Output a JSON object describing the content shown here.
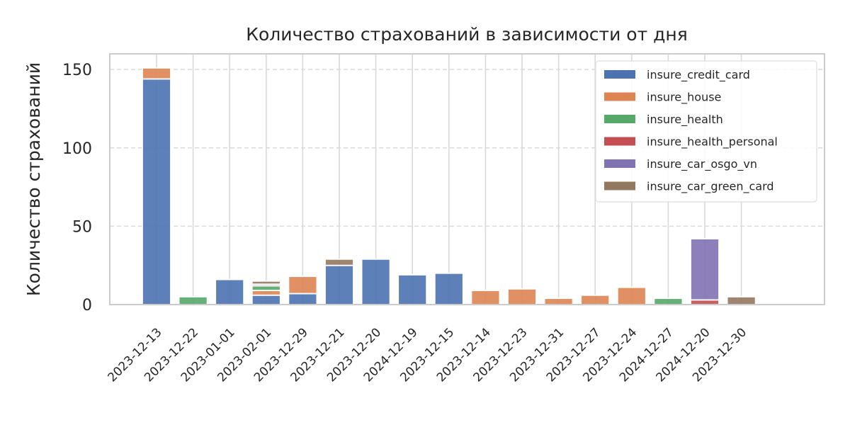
{
  "chart_data": {
    "type": "bar",
    "stacked": true,
    "title": "Количество страхований в зависимости от дня",
    "xlabel": "",
    "ylabel": "Количество страхований",
    "ylim": [
      0,
      160
    ],
    "yticks": [
      "0",
      "50",
      "100",
      "150"
    ],
    "grid": true,
    "legend_position": "top-right",
    "categories": [
      "2023-12-13",
      "2023-12-22",
      "2023-01-01",
      "2023-02-01",
      "2023-12-29",
      "2023-12-21",
      "2023-12-20",
      "2024-12-19",
      "2023-12-15",
      "2023-12-14",
      "2023-12-23",
      "2023-12-31",
      "2023-12-27",
      "2023-12-24",
      "2024-12-27",
      "2024-12-20",
      "2023-12-30"
    ],
    "series": [
      {
        "name": "insure_credit_card",
        "color": "#4c72b0",
        "values": [
          144,
          0,
          16,
          6,
          7,
          25,
          29,
          19,
          20,
          0,
          0,
          0,
          0,
          0,
          0,
          0,
          0
        ]
      },
      {
        "name": "insure_house",
        "color": "#dd8452",
        "values": [
          7,
          0,
          0,
          3,
          11,
          0,
          0,
          0,
          0,
          9,
          10,
          4,
          6,
          11,
          0,
          0,
          0
        ]
      },
      {
        "name": "insure_health",
        "color": "#55a868",
        "values": [
          0,
          5,
          0,
          3,
          0,
          0,
          0,
          0,
          0,
          0,
          0,
          0,
          0,
          0,
          4,
          0,
          0
        ]
      },
      {
        "name": "insure_health_personal",
        "color": "#c44e52",
        "values": [
          0,
          0,
          0,
          1,
          0,
          0,
          0,
          0,
          0,
          0,
          0,
          0,
          0,
          0,
          0,
          3,
          0
        ]
      },
      {
        "name": "insure_car_osgo_vn",
        "color": "#8172b3",
        "values": [
          0,
          0,
          0,
          0,
          0,
          0,
          0,
          0,
          0,
          0,
          0,
          0,
          0,
          0,
          0,
          39,
          0
        ]
      },
      {
        "name": "insure_car_green_card",
        "color": "#937860",
        "values": [
          0,
          0,
          0,
          2,
          0,
          4,
          0,
          0,
          0,
          0,
          0,
          0,
          0,
          0,
          0,
          0,
          5
        ]
      }
    ]
  }
}
